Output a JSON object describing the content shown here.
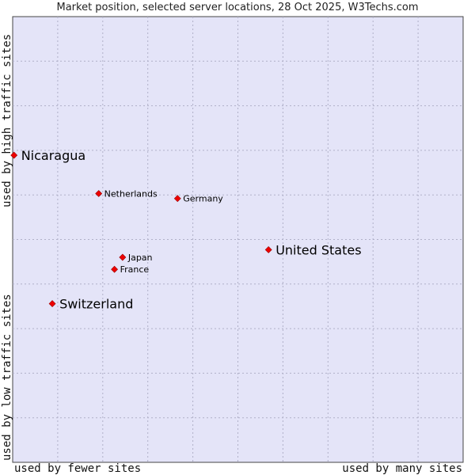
{
  "title": "Market position, selected server locations, 28 Oct 2025, W3Techs.com",
  "chart_data": {
    "type": "scatter",
    "title": "Market position, selected server locations, 28 Oct 2025, W3Techs.com",
    "xlabel_low": "used by fewer sites",
    "xlabel_high": "used by many sites",
    "ylabel_low": "used by low traffic sites",
    "ylabel_high": "used by high traffic sites",
    "xlim": [
      0,
      100
    ],
    "ylim": [
      0,
      100
    ],
    "grid": true,
    "legend": "none",
    "colors": {
      "plot_bg": "#e4e4f8",
      "grid": "#b0b0c8",
      "point": "#ee0000",
      "border": "#444444"
    },
    "points": [
      {
        "label": "Nicaragua",
        "x": 0.3,
        "y": 68.9,
        "size": "large"
      },
      {
        "label": "Netherlands",
        "x": 19.1,
        "y": 60.3,
        "size": "small"
      },
      {
        "label": "Germany",
        "x": 36.6,
        "y": 59.2,
        "size": "small"
      },
      {
        "label": "United States",
        "x": 56.8,
        "y": 47.7,
        "size": "large"
      },
      {
        "label": "Japan",
        "x": 24.4,
        "y": 46.0,
        "size": "small"
      },
      {
        "label": "France",
        "x": 22.6,
        "y": 43.3,
        "size": "small"
      },
      {
        "label": "Switzerland",
        "x": 8.8,
        "y": 35.6,
        "size": "large"
      }
    ]
  }
}
